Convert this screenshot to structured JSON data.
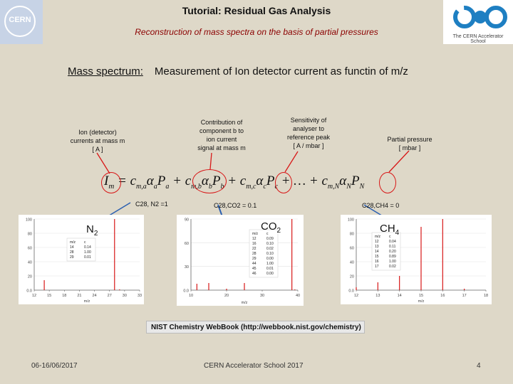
{
  "header": {
    "title": "Tutorial: Residual Gas Analysis",
    "subtitle": "Reconstruction of mass spectra on the basis of partial pressures",
    "cern_logo_text": "CERN",
    "cas_logo_caption": "The CERN Accelerator School"
  },
  "headline": {
    "label": "Mass spectrum:",
    "text": "Measurement of Ion detector current as functin of m/z"
  },
  "annotations": {
    "ion_current": [
      "Ion (detector)",
      "currents at mass m",
      "[ A ]"
    ],
    "contribution": [
      "Contribution of",
      "component b to",
      "ion current",
      "signal at mass m"
    ],
    "sensitivity": [
      "Sensitivity of",
      "analyser to",
      "reference peak",
      "[ A / mbar ]"
    ],
    "partial_pressure": [
      "Partial pressure",
      "[ mbar ]"
    ]
  },
  "coefficients": {
    "n2": "C28, N2 =1",
    "co2": "C28,CO2 = 0.1",
    "ch4": "C28,CH4 = 0"
  },
  "spectra": [
    {
      "gas": "N2",
      "x_label": "m/z",
      "x_ticks": [
        "12",
        "15",
        "18",
        "21",
        "24",
        "27",
        "30",
        "33"
      ],
      "y_ticks": [
        "0.0",
        "20",
        "40",
        "60",
        "80",
        "100"
      ],
      "table_headers": [
        "m/z",
        "c"
      ],
      "table_rows": [
        [
          "14",
          "0.14"
        ],
        [
          "28",
          "1.00"
        ],
        [
          "29",
          "0.01"
        ]
      ]
    },
    {
      "gas": "CO2",
      "x_label": "m/z",
      "x_ticks": [
        "10",
        "20",
        "30",
        "40"
      ],
      "y_ticks": [
        "0.0",
        "30",
        "60",
        "90"
      ],
      "table_headers": [
        "m/z",
        "c"
      ],
      "table_rows": [
        [
          "12",
          "0.09"
        ],
        [
          "16",
          "0.10"
        ],
        [
          "22",
          "0.02"
        ],
        [
          "28",
          "0.10"
        ],
        [
          "29",
          "0.00"
        ],
        [
          "44",
          "1.00"
        ],
        [
          "45",
          "0.01"
        ],
        [
          "46",
          "0.00"
        ]
      ]
    },
    {
      "gas": "CH4",
      "x_label": "m/z",
      "x_ticks": [
        "12",
        "13",
        "14",
        "15",
        "16",
        "17",
        "18"
      ],
      "y_ticks": [
        "0.0",
        "20",
        "40",
        "60",
        "80",
        "100"
      ],
      "table_headers": [
        "m/z",
        "c"
      ],
      "table_rows": [
        [
          "12",
          "0.04"
        ],
        [
          "13",
          "0.11"
        ],
        [
          "14",
          "0.20"
        ],
        [
          "15",
          "0.89"
        ],
        [
          "16",
          "1.00"
        ],
        [
          "17",
          "0.02"
        ]
      ]
    }
  ],
  "chart_data": [
    {
      "type": "bar",
      "title": "N2",
      "xlabel": "m/z",
      "xlim": [
        12,
        33
      ],
      "ylim": [
        0,
        100
      ],
      "x": [
        14,
        28,
        29
      ],
      "values": [
        14,
        100,
        1
      ]
    },
    {
      "type": "bar",
      "title": "CO2",
      "xlabel": "m/z",
      "xlim": [
        10,
        46
      ],
      "ylim": [
        0,
        100
      ],
      "x": [
        12,
        16,
        22,
        28,
        29,
        44,
        45,
        46
      ],
      "values": [
        9,
        10,
        2,
        10,
        0,
        100,
        1,
        0
      ]
    },
    {
      "type": "bar",
      "title": "CH4",
      "xlabel": "m/z",
      "xlim": [
        12,
        18
      ],
      "ylim": [
        0,
        100
      ],
      "x": [
        12,
        13,
        14,
        15,
        16,
        17
      ],
      "values": [
        4,
        11,
        20,
        89,
        100,
        2
      ]
    }
  ],
  "nist_banner": "NIST Chemistry WebBook (http://webbook.nist.gov/chemistry)",
  "footer": {
    "date": "06-16/06/2017",
    "event": "CERN Accelerator School 2017",
    "page": "4"
  },
  "colors": {
    "accent": "#8b0000",
    "highlight": "#d81818",
    "arrow": "#2b5fb0",
    "bars": "#d81818"
  }
}
